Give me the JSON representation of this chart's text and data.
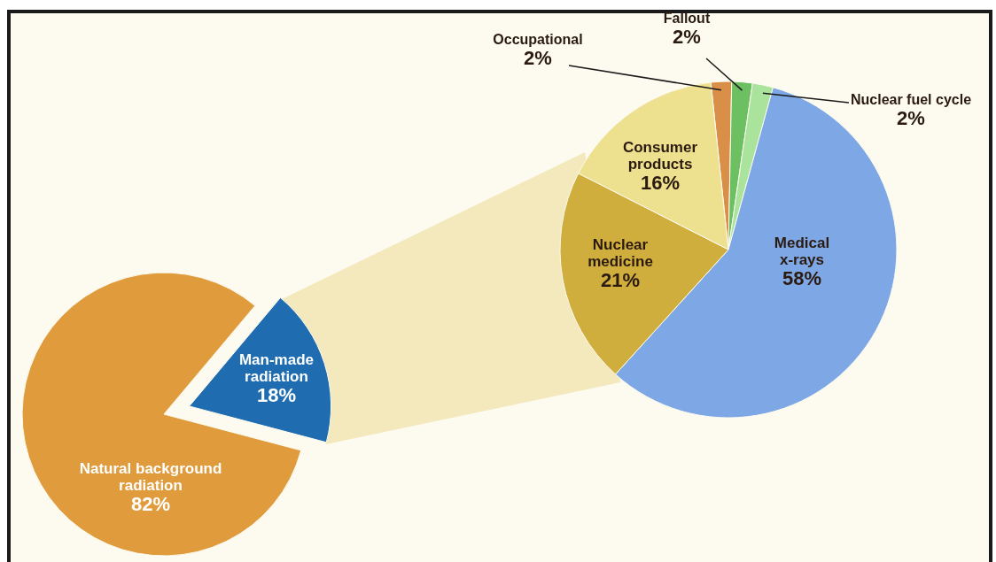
{
  "chart_data": [
    {
      "type": "pie",
      "categories": [
        "Man-made radiation",
        "Natural background radiation"
      ],
      "values": [
        18,
        82
      ],
      "colors": [
        "#1f6db0",
        "#e09c3c"
      ],
      "value_labels": [
        "18%",
        "82%"
      ]
    },
    {
      "type": "pie",
      "categories": [
        "Occupational",
        "Fallout",
        "Nuclear fuel cycle",
        "Medical x-rays",
        "Nuclear medicine",
        "Consumer products"
      ],
      "values": [
        2,
        2,
        2,
        58,
        21,
        16
      ],
      "colors": [
        "#d98f48",
        "#6cc062",
        "#a9e39c",
        "#7ea7e6",
        "#cfae3e",
        "#ede08f"
      ],
      "value_labels": [
        "2%",
        "2%",
        "2%",
        "58%",
        "21%",
        "16%"
      ]
    }
  ]
}
